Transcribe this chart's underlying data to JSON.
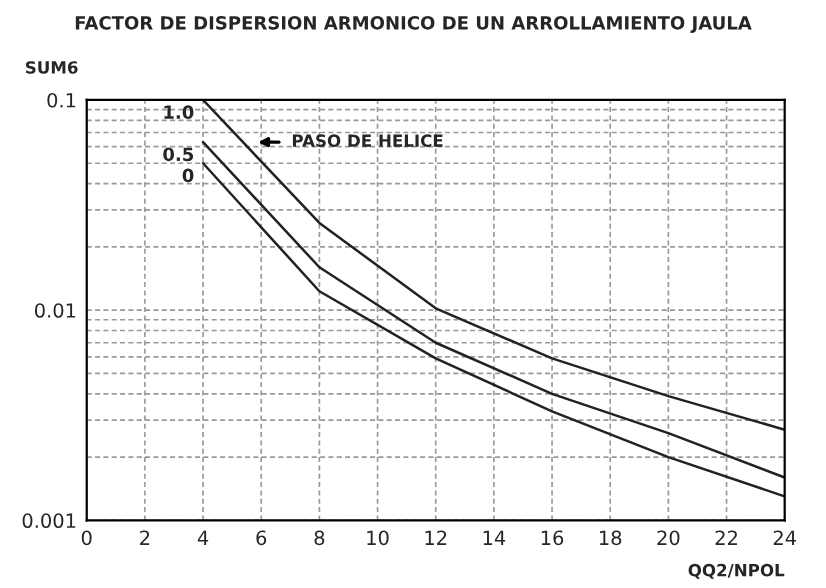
{
  "chart_data": {
    "type": "line",
    "title": "FACTOR DE DISPERSION ARMONICO DE UN ARROLLAMIENTO JAULA",
    "ylabel": "SUM6",
    "xlabel": "QQ2/NPOL",
    "series": [
      {
        "name": "1.0",
        "color": "#222222",
        "x": [
          4,
          8,
          12,
          16,
          20,
          24
        ],
        "values": [
          0.1,
          0.026,
          0.0102,
          0.0059,
          0.0039,
          0.0027
        ]
      },
      {
        "name": "0.5",
        "color": "#222222",
        "x": [
          4,
          8,
          12,
          16,
          20,
          24
        ],
        "values": [
          0.063,
          0.016,
          0.007,
          0.004,
          0.0026,
          0.0016
        ]
      },
      {
        "name": "0",
        "color": "#222222",
        "x": [
          4,
          8,
          12,
          16,
          20,
          24
        ],
        "values": [
          0.05,
          0.0123,
          0.0059,
          0.0033,
          0.002,
          0.0013
        ]
      }
    ],
    "annotations": [
      {
        "text": "PASO DE HELICE",
        "x": 5.7,
        "y": 0.063
      }
    ],
    "log": "y",
    "xlim": [
      0,
      24
    ],
    "ylim": [
      0.001,
      0.1
    ],
    "xticks": [
      0,
      2,
      4,
      6,
      8,
      10,
      12,
      14,
      16,
      18,
      20,
      22,
      24
    ],
    "yticks": [
      0.001,
      0.01,
      0.1
    ],
    "grid": true,
    "legend": false,
    "marker": "none",
    "line_style": "solid"
  }
}
